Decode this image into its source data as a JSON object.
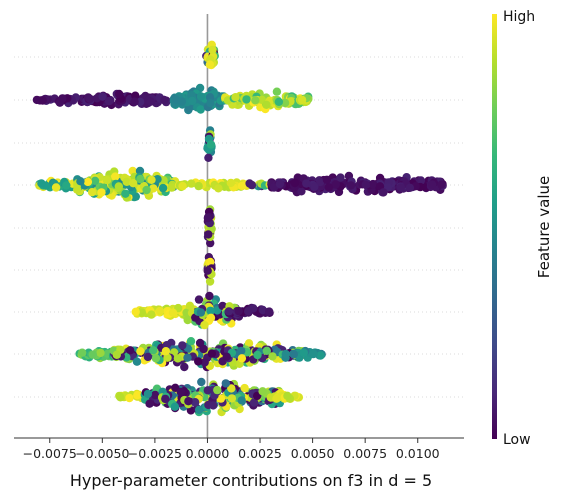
{
  "chart_data": {
    "type": "scatter",
    "subtype": "beeswarm",
    "title": "",
    "xlabel": "Hyper-parameter contributions on f3 in d = 5",
    "xlim": [
      -0.0092,
      0.0122
    ],
    "x_ticks": [
      -0.0075,
      -0.005,
      -0.0025,
      0.0,
      0.0025,
      0.005,
      0.0075,
      0.01
    ],
    "x_tick_labels": [
      "−0.0075",
      "−0.0050",
      "−0.0025",
      "0.0000",
      "0.0025",
      "0.0050",
      "0.0075",
      "0.0100"
    ],
    "ylabel": "",
    "zero_line": 0.0,
    "grid": "horizontal dotted row lines",
    "colormap": "viridis",
    "colorbar": {
      "label": "Feature value",
      "high_label": "High",
      "low_label": "Low",
      "position": "right"
    },
    "rows": [
      {
        "spread": "x ≈ 0.0000 to 0.0003, narrow",
        "mean_abs": 0.0002
      },
      {
        "low_value_range": [
          -0.0082,
          -0.0016
        ],
        "high_value_range": [
          0.0008,
          0.0048
        ],
        "center_cluster": [
          -0.0015,
          0.0008
        ]
      },
      {
        "spread": "x ≈ 0.0000, narrow",
        "mean_abs": 0.0001
      },
      {
        "high_value_range": [
          -0.008,
          0.002
        ],
        "low_value_range": [
          0.003,
          0.0112
        ]
      },
      {
        "spread": "x ≈ 0.0000, narrow",
        "mean_abs": 0.0001
      },
      {
        "spread": "x ≈ 0.0000, narrow",
        "mean_abs": 0.0001
      },
      {
        "mixed_range": [
          -0.0035,
          0.003
        ]
      },
      {
        "mixed_range": [
          -0.0062,
          0.0055
        ]
      },
      {
        "mixed_range": [
          -0.0042,
          0.0044
        ]
      }
    ]
  }
}
